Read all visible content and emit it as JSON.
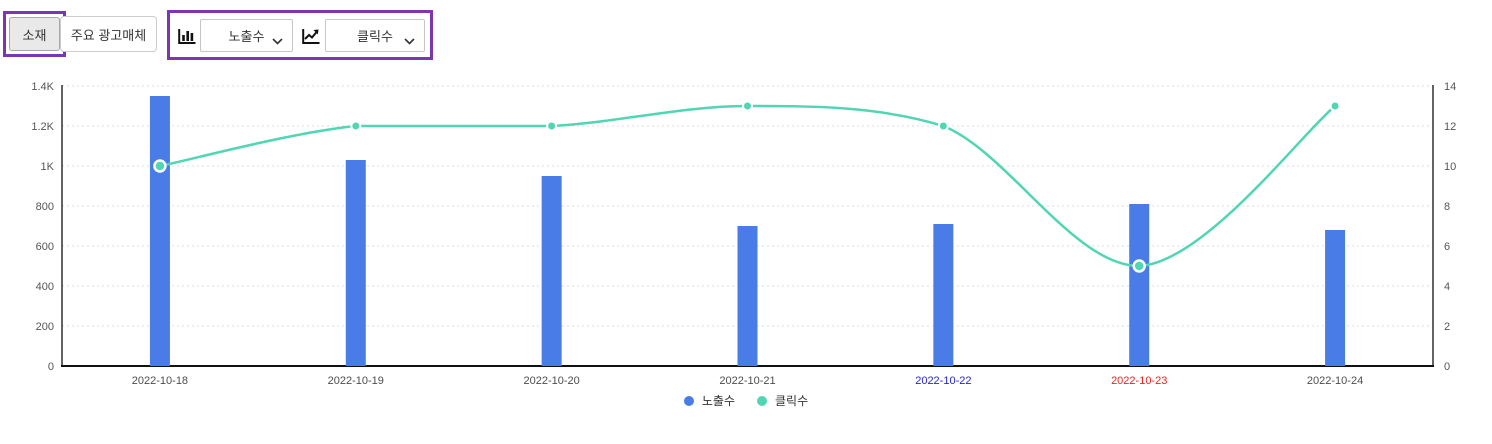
{
  "header": {
    "material_tab": "소재",
    "media_tab": "주요 광고매체",
    "bar_metric_dropdown": "노출수",
    "line_metric_dropdown": "클릭수"
  },
  "colors": {
    "annotation": "#7b35b5",
    "bar": "#4a7ce8",
    "line": "#50d6b2",
    "axis_line": "#111111",
    "grid": "#dddddd",
    "tick_text": "#555555",
    "date_default": "#4d4d4d",
    "date_saturday": "#2222e6",
    "date_sunday": "#ee2222"
  },
  "chart_data": {
    "type": "combo-bar-line-dual-axis",
    "categories": [
      "2022-10-18",
      "2022-10-19",
      "2022-10-20",
      "2022-10-21",
      "2022-10-22",
      "2022-10-23",
      "2022-10-24"
    ],
    "series": [
      {
        "name": "노출수",
        "type": "bar",
        "axis": "left",
        "values": [
          1350,
          1030,
          950,
          700,
          710,
          810,
          680
        ]
      },
      {
        "name": "클릭수",
        "type": "line",
        "axis": "right",
        "values": [
          10,
          12,
          12,
          13,
          12,
          5,
          13
        ],
        "emphasized_point_indices": [
          0,
          5
        ]
      }
    ],
    "left_axis": {
      "min": 0,
      "max": 1400,
      "tick_labels": [
        "0",
        "200",
        "400",
        "600",
        "800",
        "1K",
        "1.2K",
        "1.4K"
      ]
    },
    "right_axis": {
      "min": 0,
      "max": 14,
      "tick_labels": [
        "0",
        "2",
        "4",
        "6",
        "8",
        "10",
        "12",
        "14"
      ]
    },
    "x_label_day_types": [
      "default",
      "default",
      "default",
      "default",
      "saturday",
      "sunday",
      "default"
    ],
    "grid": "dotted-horizontal",
    "legend_position": "bottom-center"
  },
  "legend": {
    "items": [
      {
        "label": "노출수",
        "color": "#4a7ce8"
      },
      {
        "label": "클릭수",
        "color": "#50d6b2"
      }
    ]
  }
}
